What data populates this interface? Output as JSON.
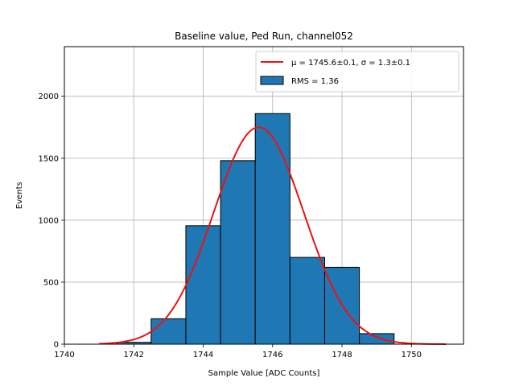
{
  "chart_data": {
    "type": "bar",
    "title": "Baseline value, Ped Run, channel052",
    "xlabel": "Sample Value [ADC Counts]",
    "ylabel": "Events",
    "xlim": [
      1740,
      1751.5
    ],
    "ylim": [
      0,
      2400
    ],
    "xticks": [
      1740,
      1742,
      1744,
      1746,
      1748,
      1750
    ],
    "yticks": [
      0,
      500,
      1000,
      1500,
      2000
    ],
    "grid": true,
    "legend_position": "top-right",
    "bins": [
      {
        "left": 1741.5,
        "right": 1742.5,
        "value": 15
      },
      {
        "left": 1742.5,
        "right": 1743.5,
        "value": 205
      },
      {
        "left": 1743.5,
        "right": 1744.5,
        "value": 955
      },
      {
        "left": 1744.5,
        "right": 1745.5,
        "value": 1480
      },
      {
        "left": 1745.5,
        "right": 1746.5,
        "value": 1860
      },
      {
        "left": 1746.5,
        "right": 1747.5,
        "value": 700
      },
      {
        "left": 1747.5,
        "right": 1748.5,
        "value": 620
      },
      {
        "left": 1748.5,
        "right": 1749.5,
        "value": 85
      }
    ],
    "fit": {
      "type": "gaussian",
      "mu": 1745.6,
      "sigma": 1.3,
      "amplitude": 1750,
      "x_range": [
        1741,
        1751
      ]
    },
    "legend": [
      {
        "label": "μ = 1745.6±0.1, σ = 1.3±0.1",
        "kind": "line",
        "color": "#ee1111"
      },
      {
        "label": "RMS = 1.36",
        "kind": "patch",
        "color": "#1f77b4"
      }
    ],
    "colors": {
      "bar_fill": "#1f77b4",
      "bar_edge": "#000000",
      "fit_line": "#ee1111",
      "grid": "#b0b0b0"
    }
  }
}
